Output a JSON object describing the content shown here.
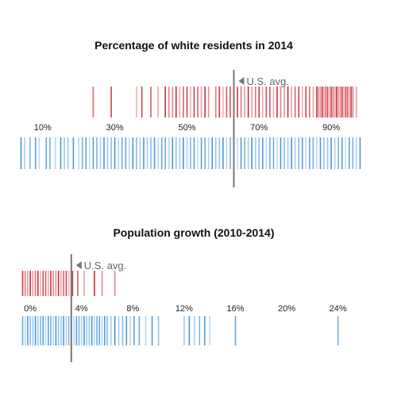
{
  "colors": {
    "red": "#c8202e",
    "blue": "#3b8fd6",
    "avg_line": "#777777",
    "text": "#111111"
  },
  "chart_data": [
    {
      "type": "strip",
      "title": "Percentage of white residents in 2014",
      "xlim": [
        3,
        99
      ],
      "x_ticks": [
        10,
        30,
        50,
        70,
        90
      ],
      "tick_labels": [
        "10%",
        "30%",
        "50%",
        "70%",
        "90%"
      ],
      "reference_line": {
        "value": 63,
        "label": "U.S. avg."
      },
      "series": [
        {
          "color": "red",
          "position": "above",
          "values": [
            24,
            29,
            36,
            37.5,
            40,
            42,
            44,
            45,
            46,
            47,
            48,
            49,
            50,
            51,
            52,
            53,
            54,
            55,
            56,
            58,
            59,
            60,
            61,
            62,
            63,
            64,
            65,
            66,
            67,
            68,
            69,
            70,
            71,
            72,
            73,
            74,
            75,
            76,
            77,
            78,
            79,
            80,
            81,
            82,
            83,
            84,
            85,
            86,
            86.5,
            87,
            87.5,
            88,
            88.5,
            89,
            89.5,
            90,
            90.5,
            91,
            91.5,
            92,
            92.5,
            93,
            93.5,
            94,
            94.5,
            95,
            95.5,
            96,
            97
          ]
        },
        {
          "color": "blue",
          "position": "below",
          "values": [
            4,
            5,
            6.5,
            8,
            9,
            11,
            12,
            13.5,
            15,
            16,
            17,
            18.5,
            20,
            21,
            22,
            23,
            24,
            25,
            26,
            27,
            28,
            29,
            30,
            31,
            32,
            33,
            34,
            35,
            36,
            37,
            38,
            39,
            40,
            41,
            42,
            43,
            44,
            45,
            46,
            47,
            48,
            49,
            50,
            51,
            52,
            53,
            54,
            55,
            56,
            57,
            58,
            59,
            60,
            61,
            62,
            63,
            64,
            65,
            66,
            67,
            68,
            69,
            70,
            71,
            72,
            73,
            74,
            75,
            76,
            77,
            78,
            79,
            80,
            81,
            82,
            83,
            84,
            85,
            86,
            87,
            88,
            89,
            90,
            91,
            92,
            93,
            94,
            95,
            96,
            97,
            98
          ]
        }
      ]
    },
    {
      "type": "strip",
      "title": "Population growth (2010-2014)",
      "xlim": [
        -1,
        26
      ],
      "x_ticks": [
        0,
        4,
        8,
        12,
        16,
        20,
        24
      ],
      "tick_labels": [
        "0%",
        "4%",
        "8%",
        "12%",
        "16%",
        "20%",
        "24%"
      ],
      "reference_line": {
        "value": 3.2,
        "label": "U.S. avg."
      },
      "series": [
        {
          "color": "red",
          "position": "above",
          "values": [
            -0.6,
            -0.4,
            -0.2,
            0,
            0.2,
            0.4,
            0.6,
            0.8,
            1,
            1.2,
            1.4,
            1.6,
            1.8,
            2,
            2.2,
            2.4,
            2.6,
            2.8,
            3,
            3.3,
            3.7,
            4.2,
            5,
            5.6,
            6.6
          ]
        },
        {
          "color": "blue",
          "position": "below",
          "values": [
            -0.6,
            -0.4,
            -0.2,
            0,
            0.2,
            0.4,
            0.6,
            0.8,
            1,
            1.2,
            1.4,
            1.6,
            1.8,
            2,
            2.2,
            2.4,
            2.6,
            2.8,
            3,
            3.2,
            3.4,
            3.6,
            3.8,
            4,
            4.2,
            4.4,
            4.6,
            4.8,
            5,
            5.2,
            5.4,
            5.6,
            5.8,
            6,
            6.3,
            6.6,
            6.9,
            7.2,
            7.5,
            7.8,
            8.1,
            8.5,
            9,
            9.5,
            10,
            12,
            12.4,
            12.8,
            13.2,
            13.6,
            14,
            16,
            24
          ]
        }
      ]
    }
  ]
}
